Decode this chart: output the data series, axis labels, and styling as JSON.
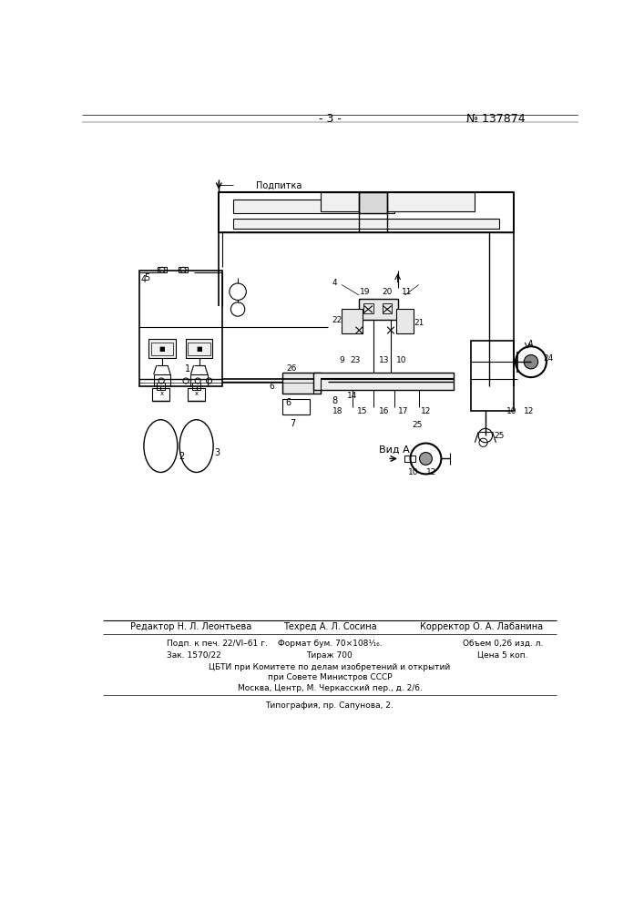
{
  "page_number": "- 3 -",
  "patent_number": "№ 137874",
  "background_color": "#ffffff",
  "line_color": "#000000",
  "text_color": "#000000",
  "podpitka_label": "Подпитка",
  "vid_a_label": "Вид A",
  "footer_row1": "Редактор Н. Л. Леонтьева",
  "footer_row1b": "Техред А. Л. Сосина",
  "footer_row1c": "Корректор О. А. Лабанина",
  "footer_row2a": "Подп. к печ. 22/VI–61 г.",
  "footer_row2b": "Формат бум. 70×108¹⁄₁₆.",
  "footer_row2c": "Объем 0,26 изд. л.",
  "footer_row3a": "Зак. 1570/22",
  "footer_row3b": "Тираж 700",
  "footer_row3c": "Цена 5 коп.",
  "footer_cbti1": "ЦБТИ при Комитете по делам изобретений и открытий",
  "footer_cbti2": "при Совете Министров СССР",
  "footer_cbti3": "Москва, Центр, М. Черкасский пер., д. 2/6.",
  "footer_typo": "Типография, пр. Сапунова, 2."
}
